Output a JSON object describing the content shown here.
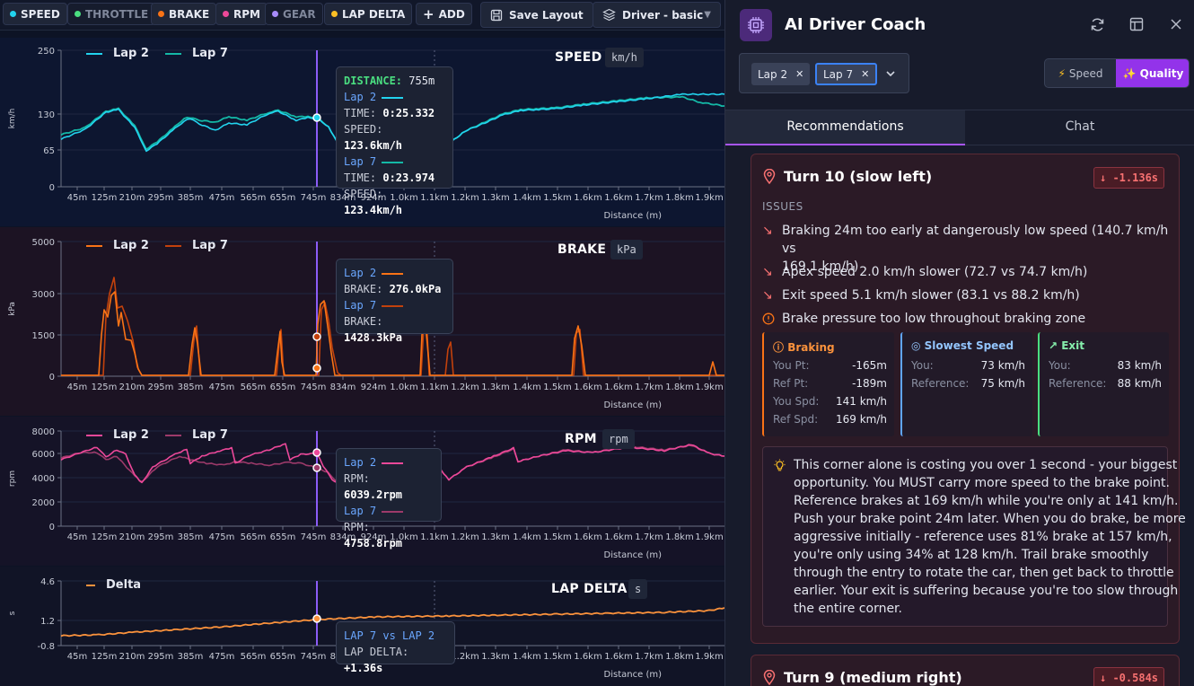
{
  "toolbar": {
    "channels": [
      {
        "label": "SPEED",
        "color": "#22d3ee",
        "active": true
      },
      {
        "label": "THROTTLE",
        "color": "#4ade80",
        "active": false
      },
      {
        "label": "BRAKE",
        "color": "#f97316",
        "active": true
      },
      {
        "label": "RPM",
        "color": "#ec4899",
        "active": true
      },
      {
        "label": "GEAR",
        "color": "#a78bfa",
        "active": false
      },
      {
        "label": "LAP DELTA",
        "color": "#fbbf24",
        "active": true
      }
    ],
    "add_label": "ADD",
    "save_label": "Save Layout",
    "preset_label": "Driver - basic"
  },
  "x_ticks": [
    "45m",
    "125m",
    "210m",
    "295m",
    "385m",
    "475m",
    "565m",
    "655m",
    "745m",
    "834m",
    "924m",
    "1.0km",
    "1.1km",
    "1.2km",
    "1.3km",
    "1.4km",
    "1.5km",
    "1.6km",
    "1.6km",
    "1.7km",
    "1.8km",
    "1.9km"
  ],
  "x_label": "Distance (m)",
  "cursor_x_m": 755,
  "panels": {
    "speed": {
      "title": "SPEED",
      "unit": "km/h",
      "ylabel": "km/h",
      "yticks": [
        "250",
        "130",
        "65",
        "0"
      ],
      "legend": [
        {
          "name": "Lap 2",
          "color": "#22d3ee"
        },
        {
          "name": "Lap 7",
          "color": "#14b8a6"
        }
      ],
      "tooltip": {
        "distance_label": "DISTANCE:",
        "distance_value": "755m",
        "lap_a": "Lap 2",
        "lap_b": "Lap 7",
        "time_label": "TIME:",
        "speed_label": "SPEED:",
        "a_time": "0:25.332",
        "a_speed": "123.6km/h",
        "b_time": "0:23.974",
        "b_speed": "123.4km/h"
      }
    },
    "brake": {
      "title": "BRAKE",
      "unit": "kPa",
      "ylabel": "kPa",
      "yticks": [
        "5000",
        "3000",
        "1500",
        "0"
      ],
      "legend": [
        {
          "name": "Lap 2",
          "color": "#f97316"
        },
        {
          "name": "Lap 7",
          "color": "#c2410c"
        }
      ],
      "tooltip": {
        "lap_a": "Lap 2",
        "lap_b": "Lap 7",
        "label": "BRAKE:",
        "a_val": "276.0kPa",
        "b_val": "1428.3kPa"
      }
    },
    "rpm": {
      "title": "RPM",
      "unit": "rpm",
      "ylabel": "rpm",
      "yticks": [
        "8000",
        "6000",
        "4000",
        "2000",
        "0"
      ],
      "legend": [
        {
          "name": "Lap 2",
          "color": "#ec4899"
        },
        {
          "name": "Lap 7",
          "color": "#9d3a6a"
        }
      ],
      "tooltip": {
        "lap_a": "Lap 2",
        "lap_b": "Lap 7",
        "label": "RPM:",
        "a_val": "6039.2rpm",
        "b_val": "4758.8rpm"
      }
    },
    "delta": {
      "title": "LAP DELTA",
      "unit": "s",
      "ylabel": "s",
      "yticks": [
        "4.6",
        "1.2",
        "-0.8"
      ],
      "legend": [
        {
          "name": "Delta",
          "color": "#fb923c"
        }
      ],
      "tooltip": {
        "title": "LAP 7 vs LAP 2",
        "label": "LAP DELTA:",
        "val": "+1.36s"
      }
    }
  },
  "coach": {
    "title": "AI Driver Coach",
    "laps": [
      "Lap 2",
      "Lap 7"
    ],
    "mode_speed": "Speed",
    "mode_quality": "Quality",
    "tab_recs": "Recommendations",
    "tab_chat": "Chat",
    "card1": {
      "title": "Turn 10 (slow left)",
      "delta": "-1.136s",
      "issues_label": "ISSUES",
      "issues": [
        "Braking 24m too early at dangerously low speed (140.7 km/h vs",
        "169.1 km/h)",
        "Apex speed 2.0 km/h slower (72.7 vs 74.7 km/h)",
        "Exit speed 5.1 km/h slower (83.1 vs 88.2 km/h)",
        "Brake pressure too low throughout braking zone"
      ],
      "braking": {
        "title": "Braking",
        "rows": [
          [
            "You Pt:",
            "-165m"
          ],
          [
            "Ref Pt:",
            "-189m"
          ],
          [
            "You Spd:",
            "141 km/h"
          ],
          [
            "Ref Spd:",
            "169 km/h"
          ]
        ]
      },
      "slowest": {
        "title": "Slowest Speed",
        "rows": [
          [
            "You:",
            "73 km/h"
          ],
          [
            "Reference:",
            "75 km/h"
          ]
        ]
      },
      "exit": {
        "title": "Exit",
        "rows": [
          [
            "You:",
            "83 km/h"
          ],
          [
            "Reference:",
            "88 km/h"
          ]
        ]
      },
      "advice": [
        "This corner alone is costing you over 1 second - your biggest",
        "opportunity. You MUST carry more speed to the brake point.",
        "Reference brakes at 169 km/h while you're only at 141 km/h.",
        "Push your brake point 24m later. When you do brake, be more",
        "aggressive initially - reference uses 81% brake at 157 km/h,",
        "you're only using 34% at 128 km/h. Trail brake smoothly",
        "through the entry to rotate the car, then get back to throttle",
        "earlier. Your exit is suffering because you're too slow through",
        "the entire corner."
      ]
    },
    "card2": {
      "title": "Turn 9 (medium right)",
      "delta": "-0.584s"
    }
  }
}
